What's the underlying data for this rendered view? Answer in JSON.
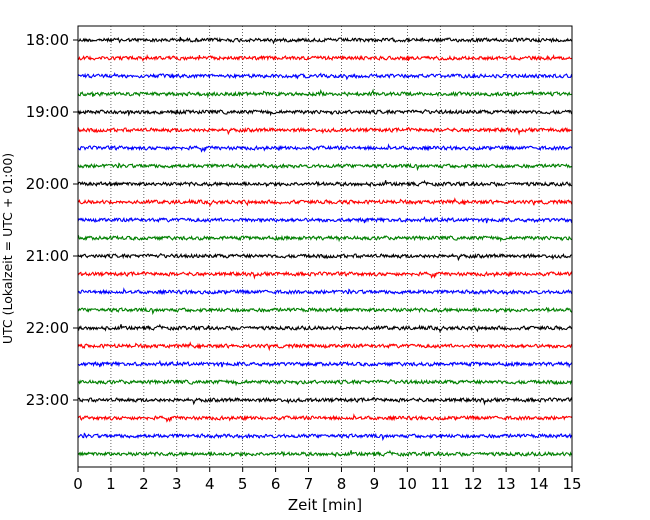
{
  "chart_data": {
    "type": "line",
    "title": "",
    "xlabel": "Zeit  [min]",
    "ylabel": "UTC (Lokalzeit = UTC + 01:00)",
    "xlim": [
      0,
      15
    ],
    "x_ticks": [
      "0",
      "1",
      "2",
      "3",
      "4",
      "5",
      "6",
      "7",
      "8",
      "9",
      "10",
      "11",
      "12",
      "13",
      "14",
      "15"
    ],
    "y_ticks": [
      "18:00",
      "19:00",
      "20:00",
      "21:00",
      "22:00",
      "23:00"
    ],
    "grid": "vertical dotted at each minute",
    "trace_start_times": [
      "18:00",
      "18:15",
      "18:30",
      "18:45",
      "19:00",
      "19:15",
      "19:30",
      "19:45",
      "20:00",
      "20:15",
      "20:30",
      "20:45",
      "21:00",
      "21:15",
      "21:30",
      "21:45",
      "22:00",
      "22:15",
      "22:30",
      "22:45",
      "23:00",
      "23:15",
      "23:30",
      "23:45"
    ],
    "trace_colors": [
      "#000000",
      "#ff0000",
      "#0000ff",
      "#008000"
    ],
    "trace_minutes_per_line": 15
  }
}
